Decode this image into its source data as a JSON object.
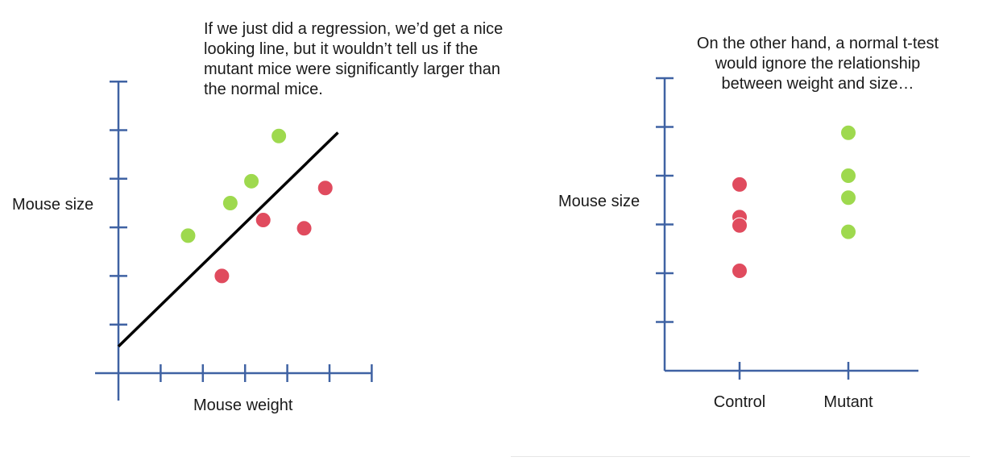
{
  "slide": {
    "left_caption": [
      "If we just did a regression, we’d get a nice",
      "looking line, but it wouldn’t tell us if the",
      "mutant mice were significantly larger than",
      "the normal mice."
    ],
    "right_caption": [
      "On the other hand, a normal t-test",
      "would ignore the relationship",
      "between weight and size…"
    ]
  },
  "colors": {
    "axis": "#3f62a3",
    "control_point": "#e04b5e",
    "mutant_point": "#9ed94e",
    "regression_line": "#000000"
  },
  "chart_data": [
    {
      "type": "scatter",
      "title": "",
      "xlabel": "Mouse weight",
      "ylabel": "Mouse size",
      "xlim": [
        0,
        6
      ],
      "ylim": [
        0,
        6
      ],
      "x_ticks": [
        1,
        2,
        3,
        4,
        5,
        6
      ],
      "y_ticks": [
        1,
        2,
        3,
        4,
        5,
        6
      ],
      "grid": false,
      "series": [
        {
          "group": "control",
          "points": [
            [
              2.45,
              2.0
            ],
            [
              3.43,
              3.15
            ],
            [
              4.4,
              2.98
            ],
            [
              4.9,
              3.81
            ]
          ]
        },
        {
          "group": "mutant",
          "points": [
            [
              1.65,
              2.83
            ],
            [
              2.65,
              3.5
            ],
            [
              3.15,
              3.95
            ],
            [
              3.8,
              4.88
            ]
          ]
        }
      ],
      "regression_line": {
        "x": [
          0,
          5.2
        ],
        "y": [
          0.55,
          4.95
        ]
      }
    },
    {
      "type": "scatter",
      "title": "",
      "xlabel": "",
      "ylabel": "Mouse size",
      "categories": [
        "Control",
        "Mutant"
      ],
      "ylim": [
        0,
        6
      ],
      "y_ticks": [
        1,
        2,
        3,
        4,
        5,
        6
      ],
      "grid": false,
      "series": [
        {
          "group": "control",
          "category": "Control",
          "values": [
            3.82,
            3.15,
            2.98,
            2.05
          ]
        },
        {
          "group": "mutant",
          "category": "Mutant",
          "values": [
            4.88,
            4.0,
            3.55,
            2.85
          ]
        }
      ]
    }
  ]
}
